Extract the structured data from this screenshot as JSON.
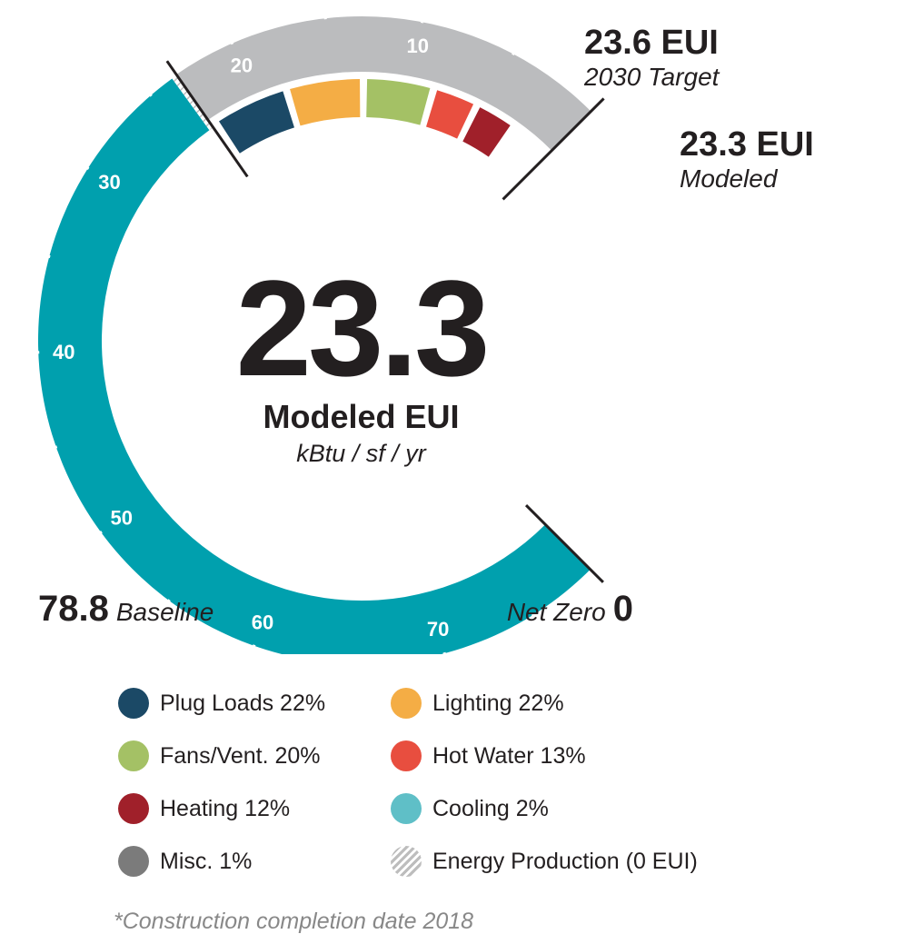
{
  "chart_data": {
    "type": "gauge",
    "title": "",
    "scale": {
      "min": 0,
      "max": 78.8,
      "major_ticks": [
        10,
        20,
        30,
        40,
        50,
        60,
        70
      ],
      "tick_labels": [
        "10",
        "20",
        "30",
        "40",
        "50",
        "60",
        "70"
      ]
    },
    "main_value": "23.3",
    "main_label": "Modeled EUI",
    "unit_label": "kBtu / sf / yr",
    "baseline": {
      "value": 78.8,
      "value_text": "78.8",
      "label": "Baseline"
    },
    "net_zero": {
      "value": 0,
      "value_text": "0",
      "label": "Net Zero"
    },
    "target": {
      "value": 23.6,
      "value_text": "23.6 EUI",
      "label": "2030 Target"
    },
    "modeled": {
      "value": 23.3,
      "value_text": "23.3 EUI",
      "label": "Modeled"
    },
    "energy_production": 0,
    "breakdown": [
      {
        "name": "Plug Loads",
        "percent": 22,
        "label": "Plug Loads 22%",
        "color": "#1b4966"
      },
      {
        "name": "Lighting",
        "percent": 22,
        "label": "Lighting 22%",
        "color": "#f4ad45"
      },
      {
        "name": "Fans/Vent.",
        "percent": 20,
        "label": "Fans/Vent. 20%",
        "color": "#a4c165"
      },
      {
        "name": "Hot Water",
        "percent": 13,
        "label": "Hot Water 13%",
        "color": "#e84e3f"
      },
      {
        "name": "Heating",
        "percent": 12,
        "label": "Heating 12%",
        "color": "#a0202a"
      },
      {
        "name": "Cooling",
        "percent": 2,
        "label": "Cooling 2%",
        "color": "#5fbfc7"
      },
      {
        "name": "Misc.",
        "percent": 1,
        "label": "Misc. 1%",
        "color": "#7b7b7b"
      }
    ],
    "energy_production_label": "Energy Production (0 EUI)",
    "footnote": "*Construction completion date 2018"
  },
  "colors": {
    "baseline_arc": "#00a0ae",
    "modeled_arc": "#bbbcbe",
    "text": "#231f20",
    "tick": "#ffffff",
    "hatch": "#bdbdbd"
  }
}
